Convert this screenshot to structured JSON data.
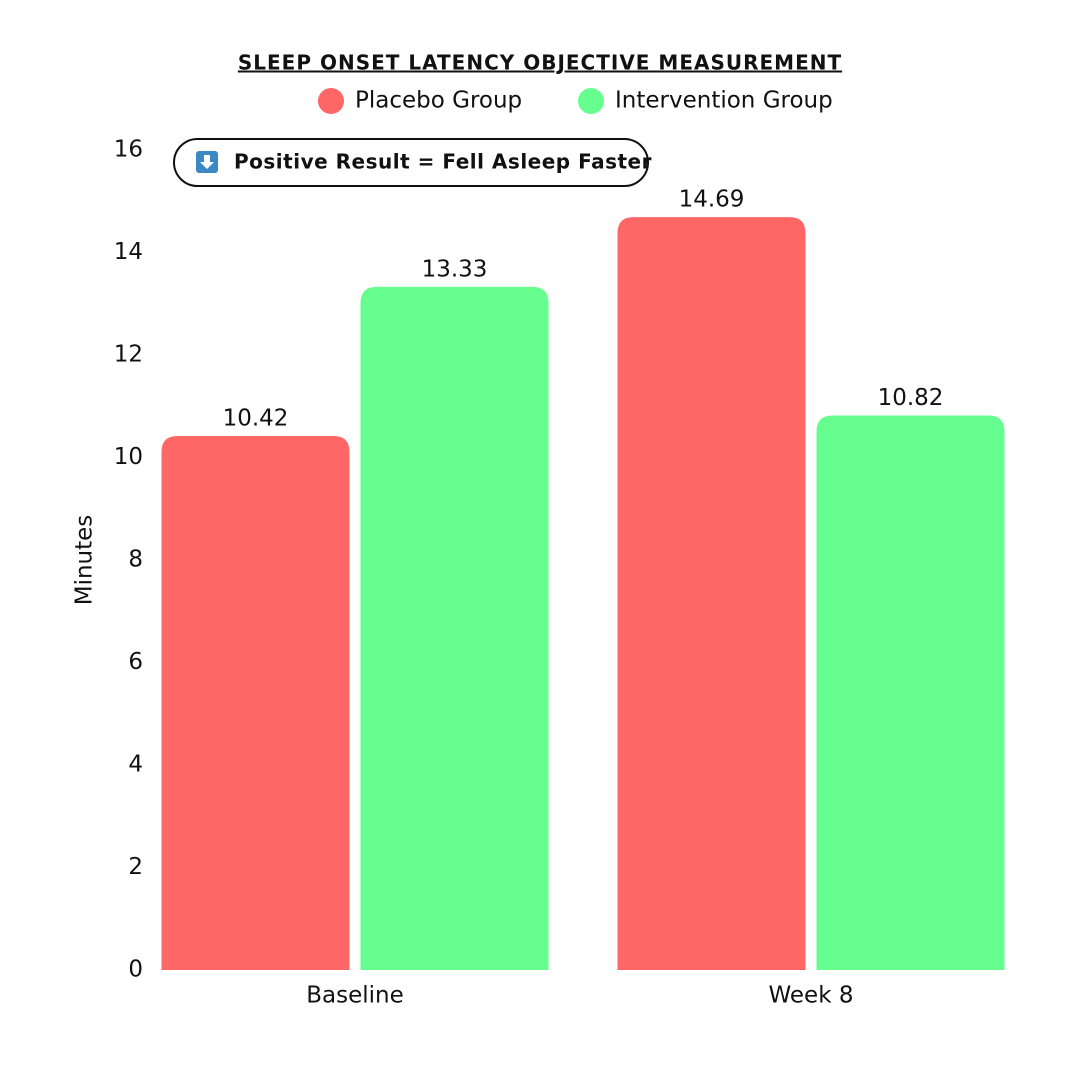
{
  "chart_data": {
    "type": "bar",
    "title": "SLEEP ONSET LATENCY OBJECTIVE MEASUREMENT",
    "annotation": "Positive Result = Fell Asleep Faster",
    "y_label": "Minutes",
    "categories": [
      "Baseline",
      "Week 8"
    ],
    "series": [
      {
        "name": "Placebo Group",
        "color": "#ff6666",
        "values": [
          10.42,
          14.69
        ]
      },
      {
        "name": "Intervention Group",
        "color": "#66ff8f",
        "values": [
          13.33,
          10.82
        ]
      }
    ],
    "ylim": [
      0,
      16
    ],
    "yticks": [
      0,
      2,
      4,
      6,
      8,
      10,
      12,
      14,
      16
    ],
    "grid": false
  }
}
